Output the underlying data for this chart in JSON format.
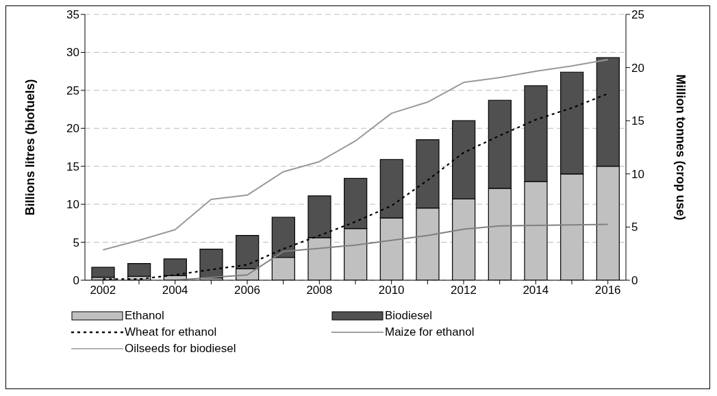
{
  "chart_data": {
    "type": "bar",
    "stacked": true,
    "categories": [
      "2002",
      null,
      "2004",
      null,
      "2006",
      null,
      "2008",
      null,
      "2010",
      null,
      "2012",
      null,
      "2014",
      null,
      "2016"
    ],
    "ylabel": "Billions litres (biofuels)",
    "y2label": "Million tonnes (crop use)",
    "ylim": [
      0,
      35
    ],
    "yticks": [
      0,
      5,
      10,
      15,
      20,
      25,
      30,
      35
    ],
    "y2lim": [
      0,
      25
    ],
    "y2ticks": [
      0,
      5,
      10,
      15,
      20,
      25
    ],
    "grid": "y",
    "legend": "bottom",
    "series": [
      {
        "name": "Ethanol",
        "color": "#c0c0c0",
        "values": [
          0.4,
          0.5,
          0.6,
          0.3,
          1.5,
          3.0,
          5.6,
          6.8,
          8.2,
          9.5,
          10.7,
          12.1,
          13.0,
          14.0,
          15.0
        ]
      },
      {
        "name": "Biodiesel",
        "color": "#505050",
        "values": [
          1.3,
          1.7,
          2.2,
          3.8,
          4.4,
          5.3,
          5.5,
          6.6,
          7.7,
          9.0,
          10.3,
          11.6,
          12.6,
          13.4,
          14.3
        ]
      },
      {
        "name": "Wheat for ethanol",
        "type": "line",
        "axis": "y2",
        "line_style": "dashed",
        "color": "#000000",
        "values": [
          0.1,
          0.1,
          0.5,
          1.0,
          1.45,
          2.95,
          4.2,
          5.5,
          7.0,
          9.4,
          12.0,
          13.6,
          15.1,
          16.2,
          17.55
        ]
      },
      {
        "name": "Maize for ethanol",
        "type": "line",
        "axis": "y2",
        "line_style": "solid",
        "color": "#808080",
        "values": [
          null,
          null,
          0,
          0.25,
          0.5,
          2.7,
          3.0,
          3.3,
          3.75,
          4.2,
          4.8,
          5.1,
          5.15,
          5.2,
          5.25
        ]
      },
      {
        "name": "Oilseeds for biodiesel",
        "type": "line",
        "axis": "y2",
        "line_style": "solid",
        "color": "#999999",
        "values": [
          2.85,
          3.75,
          4.75,
          7.6,
          8.0,
          10.2,
          11.15,
          13.1,
          15.7,
          16.75,
          18.6,
          19.05,
          19.65,
          20.15,
          20.75
        ]
      }
    ]
  }
}
